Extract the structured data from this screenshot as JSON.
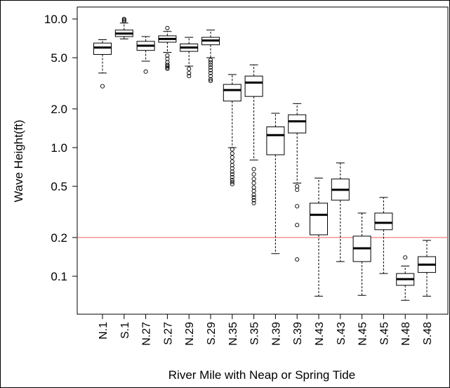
{
  "chart_data": {
    "type": "box",
    "title": "",
    "xlabel": "River Mile with Neap or Spring Tide",
    "ylabel": "Wave Height(ft)",
    "y_scale": "log",
    "ylim": [
      0.06,
      13.5
    ],
    "y_ticks": [
      0.1,
      0.2,
      0.5,
      1.0,
      2.0,
      5.0,
      10.0
    ],
    "y_tick_labels": [
      "0.1",
      "0.2",
      "0.5",
      "1.0",
      "2.0",
      "5.0",
      "10.0"
    ],
    "reference_line": {
      "y": 0.2,
      "color": "#f08080"
    },
    "categories": [
      "N.1",
      "S.1",
      "N.27",
      "S.27",
      "N.29",
      "S.29",
      "N.35",
      "S.35",
      "N.39",
      "S.39",
      "N.43",
      "S.43",
      "N.45",
      "S.45",
      "N.48",
      "S.48"
    ],
    "boxes": [
      {
        "min": 3.8,
        "q1": 5.3,
        "median": 6.0,
        "q3": 6.5,
        "max": 6.9,
        "outliers": [
          3.0
        ]
      },
      {
        "min": 7.0,
        "q1": 7.3,
        "median": 7.7,
        "q3": 8.2,
        "max": 9.3,
        "outliers": [
          9.6,
          9.8,
          10.0
        ]
      },
      {
        "min": 4.7,
        "q1": 5.7,
        "median": 6.2,
        "q3": 6.7,
        "max": 7.3,
        "outliers": [
          3.9
        ]
      },
      {
        "min": 5.5,
        "q1": 6.6,
        "median": 7.0,
        "q3": 7.4,
        "max": 8.0,
        "outliers": [
          8.5,
          5.2,
          4.9,
          4.6,
          4.4,
          4.3,
          4.2,
          4.1
        ]
      },
      {
        "min": 4.3,
        "q1": 5.6,
        "median": 6.0,
        "q3": 6.4,
        "max": 7.2,
        "outliers": [
          4.1,
          3.8,
          3.6
        ]
      },
      {
        "min": 5.0,
        "q1": 6.3,
        "median": 6.8,
        "q3": 7.2,
        "max": 8.2,
        "outliers": [
          4.8,
          4.6,
          4.4,
          4.2,
          4.0,
          3.8,
          3.6,
          3.4,
          3.3
        ]
      },
      {
        "min": 1.0,
        "q1": 2.3,
        "median": 2.8,
        "q3": 3.1,
        "max": 3.7,
        "outliers": [
          0.97,
          0.9,
          0.84,
          0.78,
          0.73,
          0.69,
          0.65,
          0.62,
          0.59,
          0.56,
          0.54,
          0.52
        ]
      },
      {
        "min": 0.8,
        "q1": 2.5,
        "median": 3.2,
        "q3": 3.6,
        "max": 4.4,
        "outliers": [
          0.68,
          0.62,
          0.57,
          0.53,
          0.49,
          0.46,
          0.43,
          0.41,
          0.39,
          0.37
        ]
      },
      {
        "min": 0.15,
        "q1": 0.88,
        "median": 1.25,
        "q3": 1.45,
        "max": 1.85,
        "outliers": []
      },
      {
        "min": 0.53,
        "q1": 1.3,
        "median": 1.6,
        "q3": 1.8,
        "max": 2.2,
        "outliers": [
          0.5,
          0.47,
          0.35,
          0.25,
          0.135
        ]
      },
      {
        "min": 0.07,
        "q1": 0.21,
        "median": 0.3,
        "q3": 0.37,
        "max": 0.58,
        "outliers": []
      },
      {
        "min": 0.13,
        "q1": 0.39,
        "median": 0.47,
        "q3": 0.57,
        "max": 0.76,
        "outliers": []
      },
      {
        "min": 0.071,
        "q1": 0.13,
        "median": 0.165,
        "q3": 0.205,
        "max": 0.31,
        "outliers": []
      },
      {
        "min": 0.105,
        "q1": 0.23,
        "median": 0.26,
        "q3": 0.31,
        "max": 0.41,
        "outliers": []
      },
      {
        "min": 0.065,
        "q1": 0.085,
        "median": 0.095,
        "q3": 0.105,
        "max": 0.12,
        "outliers": [
          0.14
        ]
      },
      {
        "min": 0.07,
        "q1": 0.107,
        "median": 0.123,
        "q3": 0.142,
        "max": 0.19,
        "outliers": []
      }
    ]
  }
}
